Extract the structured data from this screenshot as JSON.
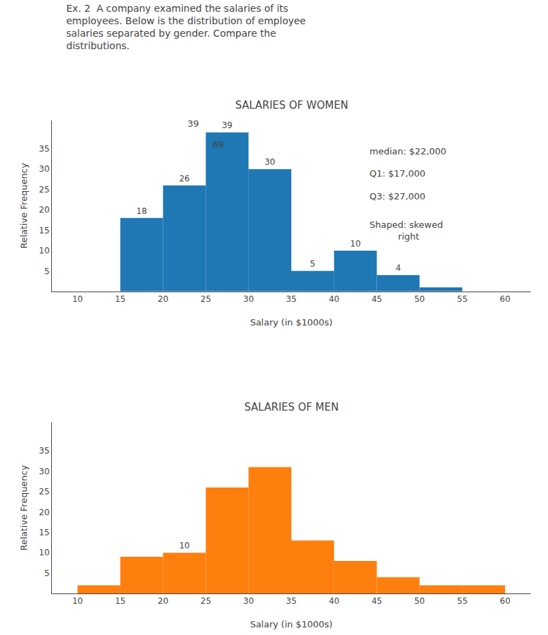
{
  "title": "Ex. 2  A company examined the salaries of its\nemployees. Below is the distribution of employee\nsalaries separated by gender. Compare the\ndistributions.",
  "chart_data": [
    {
      "type": "histogram",
      "title": "SALARIES OF WOMEN",
      "bins": [
        10,
        15,
        20,
        25,
        30,
        35,
        40,
        45,
        50,
        55,
        60
      ],
      "values": [
        0,
        18,
        26,
        39,
        30,
        5,
        10,
        4,
        1,
        0
      ],
      "value_labels": [
        null,
        "18",
        "26",
        "39",
        "30",
        "5",
        "10",
        "4",
        null,
        null
      ],
      "data_labels": true,
      "xlabel": "Salary (in $1000s)",
      "ylabel": "Relative Frequency",
      "xlim": [
        7,
        63
      ],
      "ylim": [
        0,
        42
      ],
      "xticks": [
        10,
        15,
        20,
        25,
        30,
        35,
        40,
        45,
        50,
        55,
        60
      ],
      "yticks": [
        5,
        10,
        15,
        20,
        25,
        30,
        35
      ],
      "grid": false,
      "annotations": [
        "39",
        "69",
        "median: $22,000",
        "Q1: $17,000",
        "Q3: $27,000",
        "Shaped: skewed\n          right"
      ]
    },
    {
      "type": "histogram",
      "title": "SALARIES OF MEN",
      "bins": [
        10,
        15,
        20,
        25,
        30,
        35,
        40,
        45,
        50,
        55,
        60
      ],
      "values": [
        2,
        9,
        10,
        26,
        31,
        13,
        8,
        4,
        2,
        2
      ],
      "value_labels": [
        null,
        null,
        "10",
        null,
        null,
        null,
        null,
        null,
        null,
        null
      ],
      "data_labels": true,
      "xlabel": "Salary (in $1000s)",
      "ylabel": "Relative Frequency",
      "xlim": [
        7,
        63
      ],
      "ylim": [
        0,
        42
      ],
      "xticks": [
        10,
        15,
        20,
        25,
        30,
        35,
        40,
        45,
        50,
        55,
        60
      ],
      "yticks": [
        5,
        10,
        15,
        20,
        25,
        30,
        35
      ],
      "grid": false
    }
  ]
}
